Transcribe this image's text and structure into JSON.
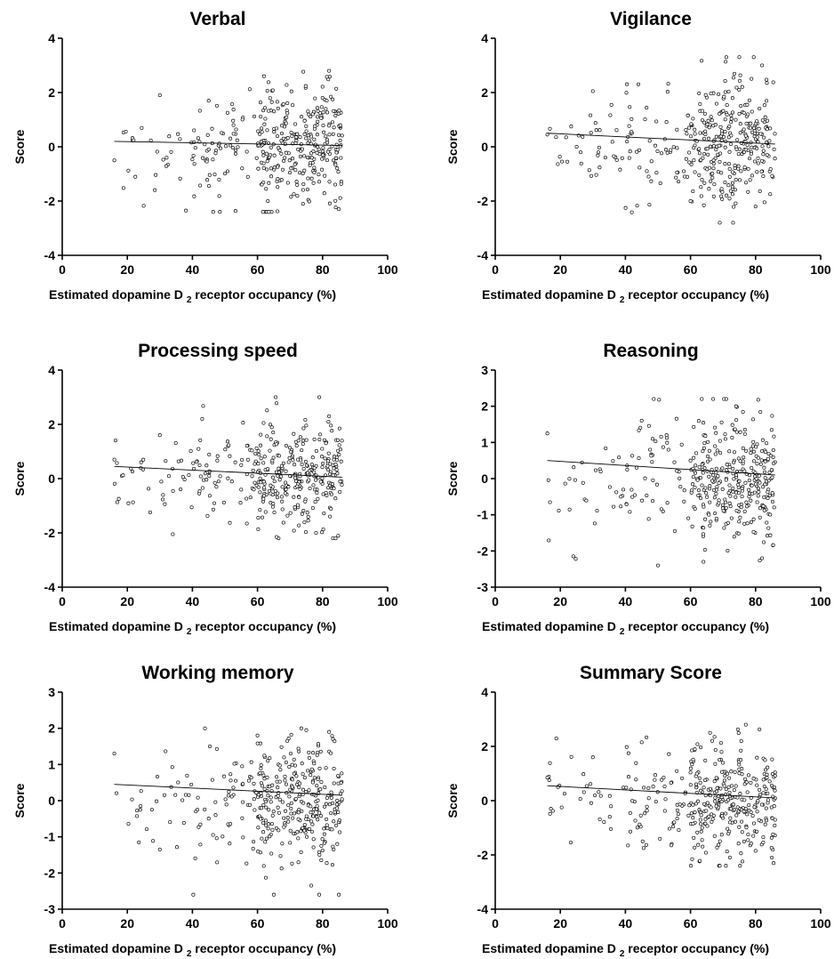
{
  "chart_data": [
    {
      "type": "scatter",
      "title": "Verbal",
      "xlabel": {
        "prefix": "Estimated dopamine D",
        "subscript": "2",
        "suffix": " receptor occupancy (%)"
      },
      "ylabel": "Score",
      "xlim": [
        0,
        100
      ],
      "ylim": [
        -4,
        4
      ],
      "xticks": [
        0,
        20,
        40,
        60,
        80,
        100
      ],
      "yticks": [
        -4,
        -2,
        0,
        2,
        4
      ],
      "fit_line": {
        "x": [
          16,
          86
        ],
        "y": [
          0.2,
          0.05
        ]
      },
      "points_summary": {
        "n_approx": 380,
        "x_range": [
          16,
          86
        ],
        "y_range": [
          -2.4,
          2.8
        ]
      },
      "points_sample": [
        [
          16,
          -0.5
        ],
        [
          30,
          1.9
        ],
        [
          38,
          -2.35
        ],
        [
          45,
          1.7
        ],
        [
          62,
          2.6
        ],
        [
          82,
          2.8
        ],
        [
          74,
          -2.1
        ],
        [
          85,
          -2.3
        ],
        [
          68,
          0.3
        ],
        [
          77,
          1.2
        ]
      ]
    },
    {
      "type": "scatter",
      "title": "Vigilance",
      "xlabel": {
        "prefix": "Estimated dopamine D",
        "subscript": "2",
        "suffix": " receptor occupancy (%)"
      },
      "ylabel": "Score",
      "xlim": [
        0,
        100
      ],
      "ylim": [
        -4,
        4
      ],
      "xticks": [
        0,
        20,
        40,
        60,
        80,
        100
      ],
      "yticks": [
        -4,
        -2,
        0,
        2,
        4
      ],
      "fit_line": {
        "x": [
          16,
          86
        ],
        "y": [
          0.5,
          0.1
        ]
      },
      "points_summary": {
        "n_approx": 380,
        "x_range": [
          16,
          86
        ],
        "y_range": [
          -2.8,
          3.3
        ]
      },
      "points_sample": [
        [
          16,
          0.45
        ],
        [
          30,
          2.05
        ],
        [
          44,
          2.3
        ],
        [
          71,
          3.3
        ],
        [
          75,
          3.3
        ],
        [
          69,
          -2.8
        ],
        [
          80,
          -2.2
        ],
        [
          60,
          -2.0
        ],
        [
          77,
          0.4
        ],
        [
          82,
          3.0
        ]
      ]
    },
    {
      "type": "scatter",
      "title": "Processing speed",
      "xlabel": {
        "prefix": "Estimated dopamine D",
        "subscript": "2",
        "suffix": " receptor occupancy (%)"
      },
      "ylabel": "Score",
      "xlim": [
        0,
        100
      ],
      "ylim": [
        -4,
        4
      ],
      "xticks": [
        0,
        20,
        40,
        60,
        80,
        100
      ],
      "yticks": [
        -4,
        -2,
        0,
        2,
        4
      ],
      "fit_line": {
        "x": [
          16,
          86
        ],
        "y": [
          0.45,
          0.05
        ]
      },
      "points_summary": {
        "n_approx": 380,
        "x_range": [
          16,
          86
        ],
        "y_range": [
          -2.2,
          3.0
        ]
      },
      "points_sample": [
        [
          16,
          0.7
        ],
        [
          30,
          1.6
        ],
        [
          34,
          -2.05
        ],
        [
          43,
          2.2
        ],
        [
          79,
          3.0
        ],
        [
          78,
          -2.0
        ],
        [
          84,
          -2.2
        ],
        [
          70,
          0.1
        ],
        [
          55,
          0.5
        ],
        [
          82,
          2.3
        ]
      ]
    },
    {
      "type": "scatter",
      "title": "Reasoning",
      "xlabel": {
        "prefix": "Estimated dopamine D",
        "subscript": "2",
        "suffix": " receptor occupancy (%)"
      },
      "ylabel": "Score",
      "xlim": [
        0,
        100
      ],
      "ylim": [
        -3,
        3
      ],
      "xticks": [
        0,
        20,
        40,
        60,
        80,
        100
      ],
      "yticks": [
        -3,
        -2,
        -1,
        0,
        1,
        2,
        3
      ],
      "fit_line": {
        "x": [
          16,
          86
        ],
        "y": [
          0.5,
          0.1
        ]
      },
      "points_summary": {
        "n_approx": 380,
        "x_range": [
          16,
          86
        ],
        "y_range": [
          -2.4,
          2.2
        ]
      },
      "points_sample": [
        [
          16,
          1.25
        ],
        [
          24,
          -2.15
        ],
        [
          50,
          -2.4
        ],
        [
          71,
          2.2
        ],
        [
          82,
          -2.2
        ],
        [
          64,
          -2.3
        ],
        [
          74,
          2.0
        ],
        [
          45,
          1.6
        ],
        [
          60,
          0.5
        ],
        [
          78,
          -0.5
        ]
      ]
    },
    {
      "type": "scatter",
      "title": "Working memory",
      "xlabel": {
        "prefix": "Estimated dopamine D",
        "subscript": "2",
        "suffix": " receptor occupancy (%)"
      },
      "ylabel": "Score",
      "xlim": [
        0,
        100
      ],
      "ylim": [
        -3,
        3
      ],
      "xticks": [
        0,
        20,
        40,
        60,
        80,
        100
      ],
      "yticks": [
        -3,
        -2,
        -1,
        0,
        1,
        2,
        3
      ],
      "fit_line": {
        "x": [
          16,
          86
        ],
        "y": [
          0.45,
          0.15
        ]
      },
      "points_summary": {
        "n_approx": 380,
        "x_range": [
          16,
          86
        ],
        "y_range": [
          -2.6,
          2.0
        ]
      },
      "points_sample": [
        [
          16,
          1.3
        ],
        [
          24,
          -0.25
        ],
        [
          30,
          -1.35
        ],
        [
          65,
          -2.6
        ],
        [
          79,
          -2.6
        ],
        [
          85,
          -2.6
        ],
        [
          75,
          1.95
        ],
        [
          82,
          1.9
        ],
        [
          60,
          1.8
        ],
        [
          70,
          0.3
        ]
      ]
    },
    {
      "type": "scatter",
      "title": "Summary Score",
      "xlabel": {
        "prefix": "Estimated dopamine D",
        "subscript": "2",
        "suffix": " receptor occupancy (%)"
      },
      "ylabel": "Score",
      "xlim": [
        0,
        100
      ],
      "ylim": [
        -4,
        4
      ],
      "xticks": [
        0,
        20,
        40,
        60,
        80,
        100
      ],
      "yticks": [
        -4,
        -2,
        0,
        2,
        4
      ],
      "fit_line": {
        "x": [
          16,
          86
        ],
        "y": [
          0.55,
          0.1
        ]
      },
      "points_summary": {
        "n_approx": 380,
        "x_range": [
          16,
          86
        ],
        "y_range": [
          -2.4,
          2.8
        ]
      },
      "points_sample": [
        [
          16,
          0.85
        ],
        [
          30,
          1.6
        ],
        [
          45,
          2.15
        ],
        [
          66,
          2.5
        ],
        [
          77,
          2.8
        ],
        [
          69,
          -2.4
        ],
        [
          85,
          -2.1
        ],
        [
          80,
          -1.85
        ],
        [
          72,
          0.3
        ],
        [
          55,
          -0.8
        ]
      ]
    }
  ]
}
